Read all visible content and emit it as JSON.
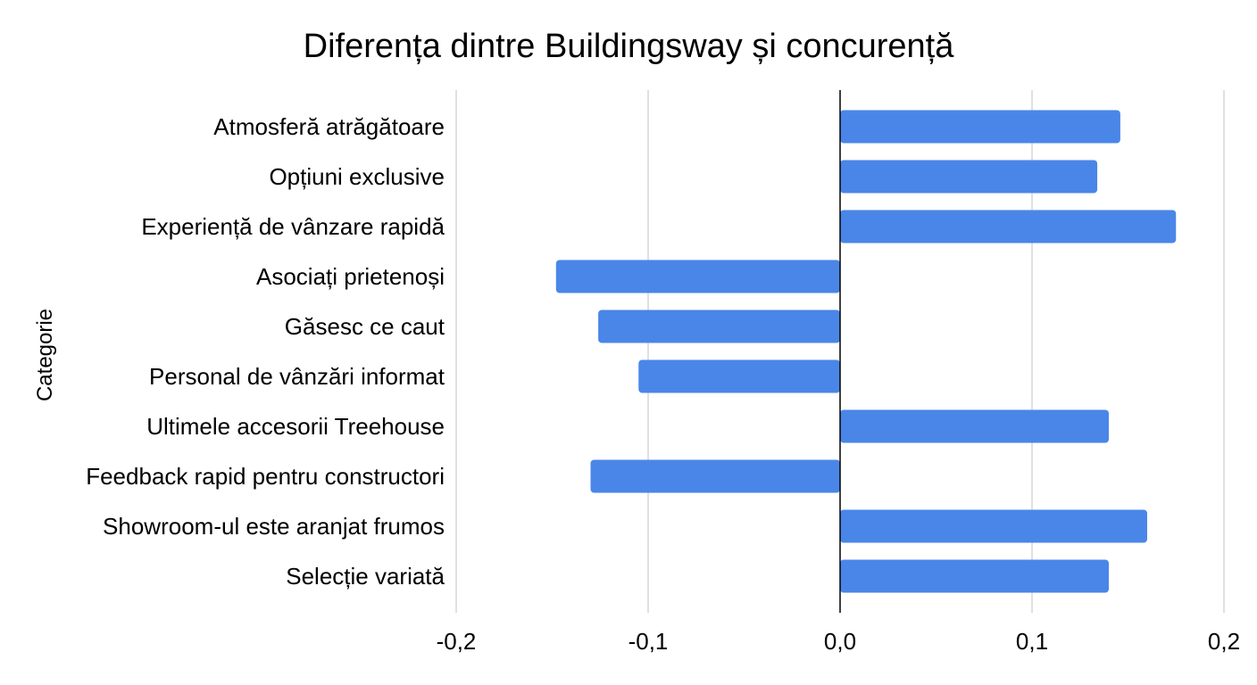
{
  "chart_data": {
    "type": "bar",
    "orientation": "horizontal",
    "title": "Diferența dintre Buildingsway și concurență",
    "ylabel": "Categorie",
    "xlabel": "",
    "categories": [
      "Atmosferă atrăgătoare",
      "Opțiuni exclusive",
      "Experiență de vânzare rapidă",
      "Asociați prietenoși",
      "Găsesc ce caut",
      "Personal de vânzări informat",
      "Ultimele accesorii Treehouse",
      "Feedback rapid pentru constructori",
      "Showroom-ul este aranjat frumos",
      "Selecție variată"
    ],
    "values": [
      0.146,
      0.134,
      0.175,
      -0.148,
      -0.126,
      -0.105,
      0.14,
      -0.13,
      0.16,
      0.14
    ],
    "xlim": [
      -0.2,
      0.2
    ],
    "xticks": [
      -0.2,
      -0.1,
      0.0,
      0.1,
      0.2
    ],
    "xtick_labels": [
      "-0,2",
      "-0,1",
      "0,0",
      "0,1",
      "0,2"
    ],
    "grid": true,
    "legend": "none",
    "colors": {
      "bar": "#4a86e8",
      "grid": "#cccccc",
      "zero_line": "#000000"
    }
  }
}
